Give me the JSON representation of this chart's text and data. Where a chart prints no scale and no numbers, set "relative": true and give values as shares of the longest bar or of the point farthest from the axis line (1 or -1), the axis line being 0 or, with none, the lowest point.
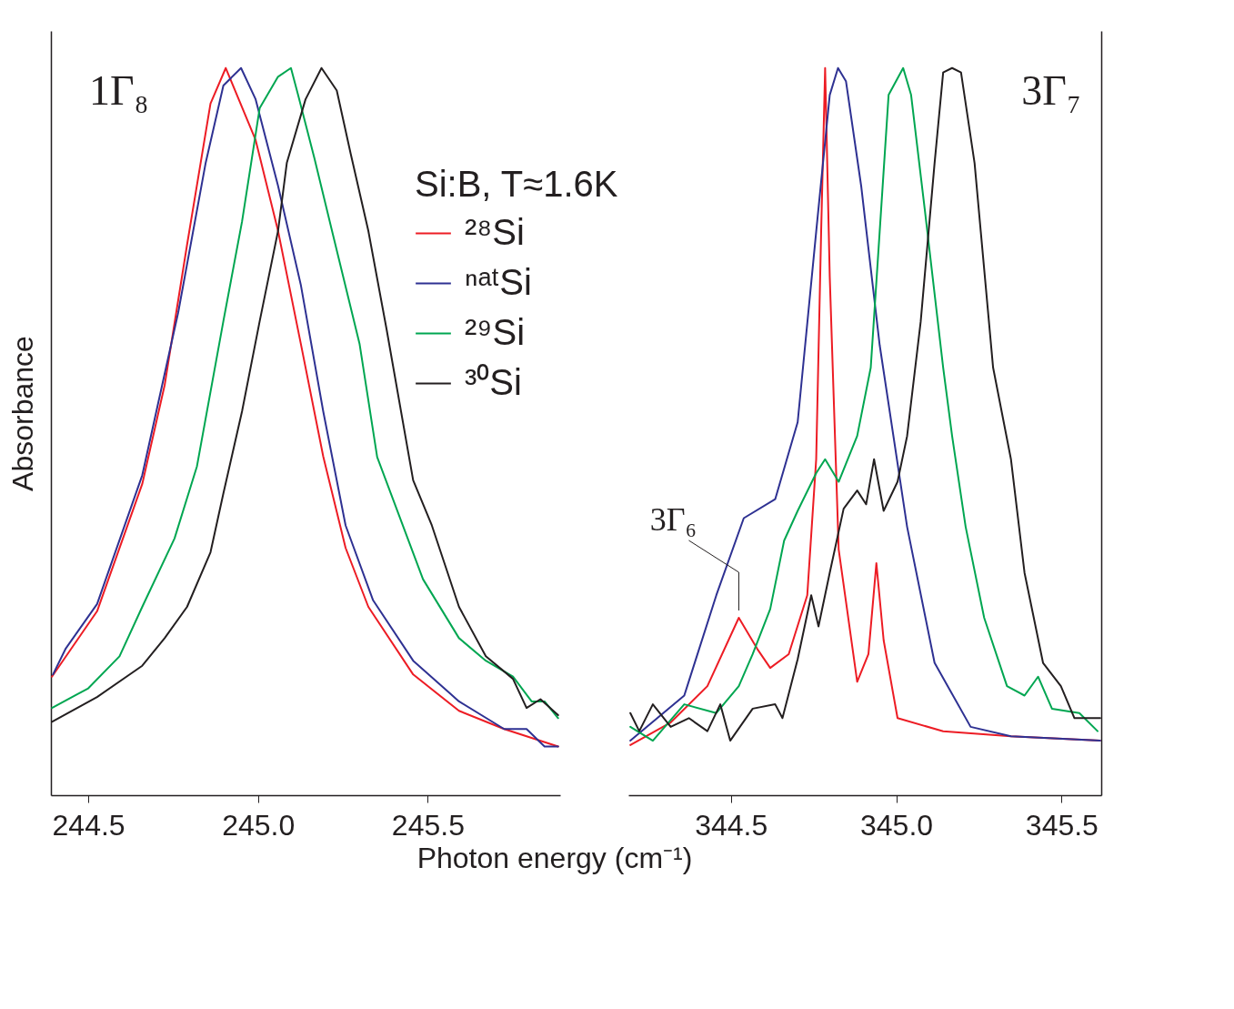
{
  "chart_data": [
    {
      "type": "line",
      "relative": true,
      "xlabel": "Photon energy (cm⁻¹)",
      "ylabel": "Absorbance",
      "legend_title": "Si:B, T≈1.6K",
      "legend": "top right",
      "tick_labels": "x",
      "grid": false,
      "line_style": "solid",
      "marker": "none",
      "annotations": [
        "1Γ₈"
      ],
      "xlim": [
        244.39,
        245.89
      ],
      "xticks": [
        244.5,
        {
          "value": 245,
          "label": "245.0"
        },
        245.5
      ],
      "series": [
        {
          "name": "²⁸Si",
          "color": "#ed1c24",
          "x": [
            244.393,
            244.526,
            244.659,
            244.725,
            244.791,
            244.86,
            244.905,
            244.993,
            245.059,
            245.126,
            245.192,
            245.258,
            245.325,
            245.457,
            245.592,
            245.725,
            245.884
          ],
          "values": [
            0.163,
            0.253,
            0.428,
            0.564,
            0.757,
            0.951,
            1.0,
            0.901,
            0.776,
            0.621,
            0.466,
            0.34,
            0.259,
            0.166,
            0.116,
            0.091,
            0.067
          ]
        },
        {
          "name": "ⁿᵃᵗSi",
          "color": "#2e3192",
          "x": [
            244.396,
            244.434,
            244.526,
            244.659,
            244.765,
            244.846,
            244.898,
            244.95,
            244.993,
            245.059,
            245.126,
            245.192,
            245.258,
            245.339,
            245.457,
            245.592,
            245.725,
            245.791,
            245.844,
            245.884
          ],
          "values": [
            0.166,
            0.202,
            0.263,
            0.44,
            0.664,
            0.87,
            0.976,
            1.0,
            0.957,
            0.838,
            0.702,
            0.528,
            0.371,
            0.268,
            0.185,
            0.129,
            0.091,
            0.091,
            0.067,
            0.067
          ]
        },
        {
          "name": "²⁹Si",
          "color": "#00a651",
          "x": [
            244.393,
            244.5,
            244.592,
            244.659,
            244.754,
            244.82,
            244.898,
            244.953,
            245.005,
            245.059,
            245.097,
            245.118,
            245.166,
            245.218,
            245.299,
            245.351,
            245.486,
            245.592,
            245.671,
            245.751,
            245.806,
            245.844,
            245.884
          ],
          "values": [
            0.12,
            0.147,
            0.191,
            0.259,
            0.353,
            0.452,
            0.652,
            0.789,
            0.945,
            0.988,
            1.0,
            0.963,
            0.876,
            0.776,
            0.621,
            0.465,
            0.297,
            0.216,
            0.185,
            0.163,
            0.129,
            0.129,
            0.106
          ]
        },
        {
          "name": "³⁰Si",
          "color": "#231f20",
          "x": [
            244.393,
            244.526,
            244.659,
            244.725,
            244.791,
            244.86,
            244.898,
            244.953,
            245.005,
            245.059,
            245.085,
            245.14,
            245.187,
            245.232,
            245.273,
            245.325,
            245.379,
            245.457,
            245.512,
            245.592,
            245.671,
            245.751,
            245.791,
            245.832,
            245.884
          ],
          "values": [
            0.101,
            0.135,
            0.178,
            0.216,
            0.259,
            0.334,
            0.415,
            0.528,
            0.652,
            0.776,
            0.87,
            0.957,
            1.0,
            0.969,
            0.882,
            0.776,
            0.64,
            0.433,
            0.371,
            0.259,
            0.191,
            0.16,
            0.12,
            0.132,
            0.11
          ]
        }
      ]
    },
    {
      "type": "line",
      "relative": true,
      "tick_labels": "x",
      "grid": false,
      "line_style": "solid",
      "marker": "none",
      "annotations": [
        "3Γ₇",
        {
          "text": "3Γ₆",
          "x": 344.524,
          "y": 0.244
        }
      ],
      "xlim": [
        344.19,
        345.62
      ],
      "xticks": [
        344.5,
        {
          "value": 345,
          "label": "345.0"
        },
        345.5
      ],
      "series": [
        {
          "color": "#ed1c24",
          "x": [
            344.196,
            344.318,
            344.429,
            344.524,
            344.58,
            344.619,
            344.675,
            344.731,
            344.758,
            344.773,
            344.785,
            344.799,
            344.826,
            344.882,
            344.916,
            344.94,
            344.962,
            345.004,
            345.142,
            345.347,
            345.617
          ],
          "values": [
            0.069,
            0.1,
            0.15,
            0.244,
            0.201,
            0.175,
            0.194,
            0.275,
            0.462,
            0.775,
            1.0,
            0.713,
            0.338,
            0.156,
            0.194,
            0.319,
            0.213,
            0.106,
            0.088,
            0.081,
            0.075
          ]
        },
        {
          "color": "#2e3192",
          "x": [
            344.196,
            344.359,
            344.456,
            344.539,
            344.634,
            344.702,
            344.758,
            344.799,
            344.824,
            344.848,
            344.894,
            344.95,
            345.033,
            345.116,
            345.225,
            345.347,
            345.617
          ],
          "values": [
            0.075,
            0.137,
            0.275,
            0.381,
            0.407,
            0.513,
            0.775,
            0.963,
            1.0,
            0.982,
            0.838,
            0.619,
            0.369,
            0.182,
            0.094,
            0.081,
            0.075
          ]
        },
        {
          "color": "#00a651",
          "x": [
            344.196,
            344.264,
            344.359,
            344.456,
            344.524,
            344.566,
            344.619,
            344.661,
            344.702,
            344.758,
            344.785,
            344.826,
            344.882,
            344.923,
            344.95,
            344.977,
            345.021,
            345.045,
            345.086,
            345.142,
            345.169,
            345.21,
            345.266,
            345.335,
            345.388,
            345.429,
            345.471,
            345.554,
            345.609
          ],
          "values": [
            0.094,
            0.075,
            0.125,
            0.113,
            0.15,
            0.194,
            0.256,
            0.35,
            0.391,
            0.443,
            0.462,
            0.431,
            0.494,
            0.588,
            0.775,
            0.963,
            1.0,
            0.963,
            0.807,
            0.588,
            0.494,
            0.369,
            0.244,
            0.15,
            0.137,
            0.163,
            0.119,
            0.113,
            0.088
          ]
        },
        {
          "color": "#231f20",
          "x": [
            344.196,
            344.223,
            344.264,
            344.318,
            344.373,
            344.429,
            344.468,
            344.498,
            344.566,
            344.634,
            344.656,
            344.702,
            344.743,
            344.765,
            344.799,
            344.841,
            344.882,
            344.909,
            344.933,
            344.962,
            345.004,
            345.033,
            345.074,
            345.116,
            345.142,
            345.169,
            345.196,
            345.237,
            345.293,
            345.347,
            345.388,
            345.444,
            345.498,
            345.539,
            345.617
          ],
          "values": [
            0.113,
            0.088,
            0.125,
            0.094,
            0.106,
            0.088,
            0.125,
            0.075,
            0.119,
            0.125,
            0.106,
            0.187,
            0.275,
            0.232,
            0.306,
            0.394,
            0.419,
            0.4,
            0.462,
            0.391,
            0.431,
            0.494,
            0.651,
            0.869,
            0.994,
            1.0,
            0.994,
            0.869,
            0.588,
            0.462,
            0.306,
            0.182,
            0.15,
            0.106,
            0.106
          ]
        }
      ]
    }
  ]
}
